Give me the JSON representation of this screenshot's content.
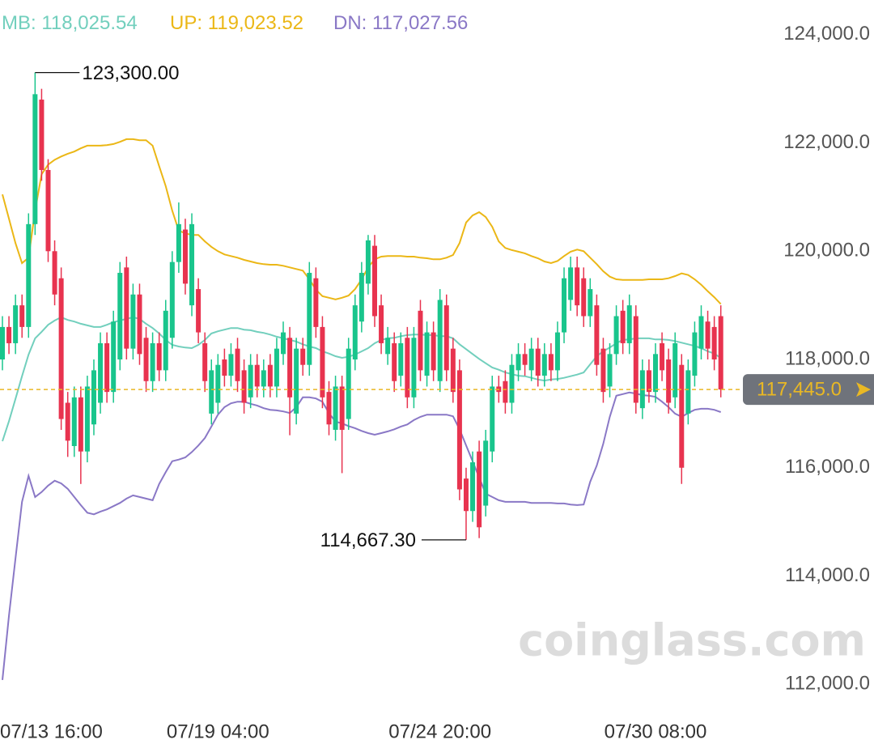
{
  "chart_data": {
    "type": "candlestick",
    "watermark": "coinglass.com",
    "legend_separator": ": ",
    "up_color": "#19c58c",
    "down_color": "#e8334f",
    "ylim": [
      111480,
      124640
    ],
    "yticks": [
      {
        "value": 124000,
        "label": "124,000.0"
      },
      {
        "value": 122000,
        "label": "122,000.0"
      },
      {
        "value": 120000,
        "label": "120,000.0"
      },
      {
        "value": 118000,
        "label": "118,000.0"
      },
      {
        "value": 116000,
        "label": "116,000.0"
      },
      {
        "value": 114000,
        "label": "114,000.0"
      },
      {
        "value": 112000,
        "label": "112,000.0"
      }
    ],
    "grid": false,
    "current_price": {
      "value": 117445,
      "label": "117,445.0",
      "color": "#e9b824"
    },
    "annotations": [
      {
        "value": 123300,
        "label": "123,300.00"
      },
      {
        "value": 114667.3,
        "label": "114,667.30"
      }
    ],
    "categories": [
      "07/13 16:00",
      null,
      null,
      null,
      null,
      null,
      null,
      null,
      null,
      null,
      null,
      null,
      null,
      null,
      null,
      null,
      null,
      null,
      null,
      null,
      null,
      null,
      null,
      null,
      null,
      null,
      null,
      null,
      null,
      null,
      null,
      null,
      null,
      "07/19 04:00",
      null,
      null,
      null,
      null,
      null,
      null,
      null,
      null,
      null,
      null,
      null,
      null,
      null,
      null,
      null,
      null,
      null,
      null,
      null,
      null,
      null,
      null,
      null,
      null,
      null,
      null,
      null,
      null,
      null,
      null,
      null,
      null,
      null,
      "07/24 20:00",
      null,
      null,
      null,
      null,
      null,
      null,
      null,
      null,
      null,
      null,
      null,
      null,
      null,
      null,
      null,
      null,
      null,
      null,
      null,
      null,
      null,
      null,
      null,
      null,
      null,
      null,
      null,
      null,
      null,
      null,
      null,
      null,
      "07/30 08:00",
      null,
      null,
      null,
      null,
      null,
      null,
      null,
      null,
      null,
      null
    ],
    "open": [
      118000,
      118600,
      118300,
      119000,
      118600,
      120500,
      122800,
      121500,
      120000,
      119500,
      117200,
      116400,
      117300,
      116300,
      116800,
      117200,
      118300,
      117400,
      118000,
      119700,
      118200,
      119200,
      118400,
      117600,
      118300,
      117800,
      118400,
      119800,
      120400,
      119000,
      119300,
      118300,
      117000,
      117200,
      118000,
      117700,
      118200,
      117800,
      117300,
      117900,
      117500,
      117900,
      117500,
      118100,
      118400,
      117000,
      118200,
      117900,
      119500,
      118600,
      117400,
      116700,
      117500,
      116900,
      118000,
      118700,
      119400,
      120100,
      119000,
      118100,
      118300,
      117700,
      118400,
      117300,
      118900,
      117700,
      118500,
      117600,
      119000,
      118200,
      117800,
      115800,
      115200,
      116300,
      115300,
      116300,
      117500,
      117600,
      117200,
      117800,
      118100,
      117800,
      118200,
      117700,
      118100,
      117800,
      118500,
      119100,
      119700,
      119500,
      118800,
      119000,
      118200,
      117500,
      118100,
      118900,
      118300,
      118800,
      117100,
      117800,
      117400,
      118300,
      118000,
      117300,
      117900,
      117000,
      117700,
      118200,
      118700,
      118600,
      118800
    ],
    "high": [
      118800,
      118800,
      119200,
      119200,
      120700,
      123300,
      123000,
      121700,
      120200,
      119700,
      117400,
      117500,
      117500,
      117700,
      118000,
      118500,
      118500,
      118900,
      119800,
      119900,
      119400,
      119400,
      118600,
      118500,
      118500,
      119100,
      120000,
      120900,
      120600,
      120700,
      119500,
      118500,
      118000,
      118100,
      118200,
      118300,
      118400,
      118000,
      118100,
      118100,
      118000,
      118100,
      118400,
      118700,
      118600,
      118400,
      118400,
      119800,
      119700,
      118800,
      117600,
      117700,
      117700,
      118400,
      119200,
      119800,
      120300,
      120300,
      119200,
      118600,
      118500,
      118500,
      118600,
      118600,
      119100,
      118700,
      118700,
      119300,
      119200,
      118400,
      118000,
      116000,
      116300,
      116500,
      116700,
      117700,
      117700,
      117800,
      118100,
      118300,
      118300,
      118400,
      118400,
      118300,
      118300,
      118700,
      119700,
      119900,
      119900,
      119700,
      119500,
      119200,
      118400,
      118300,
      119000,
      119100,
      119200,
      119000,
      118000,
      118000,
      118300,
      118500,
      118200,
      118500,
      118100,
      118000,
      118700,
      119000,
      118900,
      118800,
      119000
    ],
    "low": [
      117800,
      118100,
      118100,
      118400,
      118400,
      120300,
      121300,
      119800,
      119000,
      116700,
      116200,
      116200,
      115700,
      116100,
      116600,
      117000,
      117200,
      117200,
      117800,
      118000,
      118000,
      117900,
      117400,
      117400,
      117600,
      117600,
      118200,
      119600,
      119200,
      118800,
      118300,
      117400,
      116800,
      117000,
      117500,
      117500,
      117400,
      117000,
      117100,
      117300,
      117300,
      117300,
      117300,
      117900,
      116600,
      116800,
      117700,
      117700,
      118400,
      117100,
      116600,
      116500,
      115900,
      116700,
      117800,
      118500,
      119200,
      118600,
      118100,
      117900,
      117400,
      117500,
      117100,
      117100,
      117600,
      117500,
      117600,
      117400,
      117600,
      117200,
      115400,
      114667.3,
      115000,
      114700,
      115100,
      116100,
      117200,
      117000,
      117000,
      117600,
      117700,
      117600,
      117500,
      117500,
      117600,
      117600,
      118300,
      118900,
      118800,
      118600,
      118600,
      117700,
      117200,
      117300,
      117900,
      118100,
      118100,
      117000,
      116900,
      117200,
      117200,
      117600,
      117000,
      117100,
      115700,
      116800,
      117500,
      118000,
      118000,
      117800,
      117300
    ],
    "close": [
      118600,
      118300,
      119000,
      118600,
      120500,
      122900,
      121500,
      120000,
      119200,
      116900,
      116500,
      117300,
      116300,
      117500,
      117800,
      118300,
      117400,
      118700,
      119600,
      118200,
      119200,
      118100,
      117600,
      118300,
      117800,
      118900,
      119800,
      120500,
      119400,
      120500,
      118500,
      117600,
      117800,
      117900,
      117700,
      118100,
      117600,
      117200,
      117900,
      117500,
      117800,
      117500,
      118200,
      118500,
      117300,
      118200,
      117900,
      119600,
      118600,
      117300,
      116800,
      117500,
      116700,
      118200,
      119000,
      119600,
      120200,
      118800,
      118300,
      118400,
      117600,
      118300,
      117300,
      118400,
      117800,
      118500,
      117800,
      119100,
      117800,
      117400,
      115600,
      115200,
      116100,
      114900,
      116500,
      117500,
      117400,
      117200,
      117900,
      118100,
      117900,
      118200,
      117700,
      118100,
      117800,
      118500,
      119500,
      119700,
      119000,
      118800,
      119300,
      117900,
      117400,
      118100,
      118800,
      118300,
      119000,
      117200,
      117800,
      117400,
      118100,
      117800,
      117200,
      118300,
      116000,
      117800,
      118500,
      118800,
      118200,
      118000,
      117445
    ],
    "series": [
      {
        "name": "MB",
        "color": "#72cfbd",
        "current": {
          "value": 118025.54,
          "label": "118,025.54"
        },
        "values": [
          116490,
          116860,
          117270,
          117690,
          118090,
          118390,
          118510,
          118640,
          118720,
          118780,
          118730,
          118700,
          118660,
          118630,
          118600,
          118600,
          118640,
          118690,
          118720,
          118750,
          118780,
          118750,
          118660,
          118580,
          118480,
          118360,
          118270,
          118240,
          118220,
          118210,
          118270,
          118360,
          118480,
          118520,
          118550,
          118580,
          118580,
          118550,
          118540,
          118510,
          118490,
          118460,
          118420,
          118390,
          118360,
          118330,
          118280,
          118240,
          118210,
          118150,
          118110,
          118060,
          118030,
          118050,
          118090,
          118150,
          118210,
          118300,
          118360,
          118390,
          118400,
          118430,
          118450,
          118460,
          118460,
          118450,
          118450,
          118430,
          118430,
          118390,
          118280,
          118190,
          118100,
          118010,
          117930,
          117850,
          117810,
          117760,
          117730,
          117700,
          117690,
          117660,
          117630,
          117610,
          117630,
          117640,
          117660,
          117690,
          117720,
          117760,
          117910,
          118060,
          118150,
          118220,
          118300,
          118360,
          118370,
          118390,
          118390,
          118390,
          118370,
          118370,
          118360,
          118340,
          118310,
          118280,
          118250,
          118210,
          118150,
          118110,
          118025.54
        ]
      },
      {
        "name": "UP",
        "color": "#ebb716",
        "current": {
          "value": 119023.52,
          "label": "119,023.52"
        },
        "values": [
          121050,
          120600,
          120150,
          119780,
          119880,
          120750,
          121420,
          121600,
          121690,
          121750,
          121800,
          121840,
          121900,
          121950,
          121950,
          121950,
          121960,
          121980,
          122020,
          122070,
          122070,
          122050,
          122050,
          121950,
          121570,
          121200,
          120750,
          120380,
          120330,
          120300,
          120300,
          120180,
          120080,
          120000,
          119940,
          119910,
          119880,
          119840,
          119810,
          119780,
          119760,
          119750,
          119750,
          119730,
          119700,
          119670,
          119640,
          119480,
          119290,
          119170,
          119140,
          119110,
          119140,
          119180,
          119300,
          119480,
          119700,
          119850,
          119900,
          119910,
          119910,
          119910,
          119900,
          119900,
          119880,
          119870,
          119850,
          119850,
          119880,
          119930,
          120150,
          120530,
          120660,
          120720,
          120630,
          120450,
          120180,
          120060,
          120020,
          119990,
          119960,
          119910,
          119870,
          119810,
          119780,
          119820,
          119910,
          119990,
          120030,
          120000,
          119880,
          119760,
          119630,
          119530,
          119480,
          119470,
          119470,
          119470,
          119470,
          119480,
          119480,
          119480,
          119500,
          119540,
          119590,
          119560,
          119480,
          119380,
          119260,
          119150,
          119023.52
        ]
      },
      {
        "name": "DN",
        "color": "#8a78c6",
        "current": {
          "value": 117027.56,
          "label": "117,027.56"
        },
        "values": [
          112080,
          113270,
          114320,
          115370,
          115850,
          115460,
          115550,
          115670,
          115760,
          115710,
          115610,
          115460,
          115310,
          115170,
          115140,
          115190,
          115230,
          115290,
          115350,
          115430,
          115490,
          115460,
          115430,
          115400,
          115700,
          115920,
          116120,
          116150,
          116190,
          116290,
          116410,
          116550,
          116760,
          116980,
          117120,
          117190,
          117220,
          117220,
          117180,
          117150,
          117100,
          117070,
          117060,
          117040,
          117010,
          117120,
          117300,
          117300,
          117280,
          117220,
          117010,
          116850,
          116820,
          116770,
          116730,
          116680,
          116640,
          116610,
          116640,
          116670,
          116710,
          116760,
          116800,
          116880,
          116940,
          116980,
          116980,
          116980,
          116980,
          116950,
          116710,
          116410,
          116120,
          115820,
          115520,
          115460,
          115400,
          115370,
          115370,
          115370,
          115370,
          115350,
          115350,
          115350,
          115350,
          115340,
          115340,
          115320,
          115310,
          115320,
          115740,
          116040,
          116440,
          116940,
          117330,
          117360,
          117390,
          117370,
          117340,
          117330,
          117310,
          117220,
          117120,
          117000,
          116940,
          117010,
          117070,
          117090,
          117090,
          117070,
          117027.56
        ]
      }
    ]
  }
}
